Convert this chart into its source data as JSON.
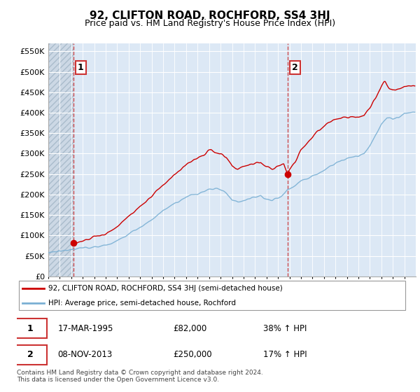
{
  "title": "92, CLIFTON ROAD, ROCHFORD, SS4 3HJ",
  "subtitle": "Price paid vs. HM Land Registry's House Price Index (HPI)",
  "ylim": [
    0,
    570000
  ],
  "yticks": [
    0,
    50000,
    100000,
    150000,
    200000,
    250000,
    300000,
    350000,
    400000,
    450000,
    500000,
    550000
  ],
  "ytick_labels": [
    "£0",
    "£50K",
    "£100K",
    "£150K",
    "£200K",
    "£250K",
    "£300K",
    "£350K",
    "£400K",
    "£450K",
    "£500K",
    "£550K"
  ],
  "bg_color": "#dce8f5",
  "grid_color": "#ffffff",
  "red_line_color": "#cc0000",
  "blue_line_color": "#7ab0d4",
  "point1_x": 1995.21,
  "point1_y": 82000,
  "point2_x": 2013.85,
  "point2_y": 250000,
  "dashed_x1": 1995.21,
  "dashed_x2": 2013.85,
  "annotation1_label": "1",
  "annotation2_label": "2",
  "legend_line1": "92, CLIFTON ROAD, ROCHFORD, SS4 3HJ (semi-detached house)",
  "legend_line2": "HPI: Average price, semi-detached house, Rochford",
  "table_row1": [
    "1",
    "17-MAR-1995",
    "£82,000",
    "38% ↑ HPI"
  ],
  "table_row2": [
    "2",
    "08-NOV-2013",
    "£250,000",
    "17% ↑ HPI"
  ],
  "footer": "Contains HM Land Registry data © Crown copyright and database right 2024.\nThis data is licensed under the Open Government Licence v3.0.",
  "xmin": 1993,
  "xmax": 2025
}
